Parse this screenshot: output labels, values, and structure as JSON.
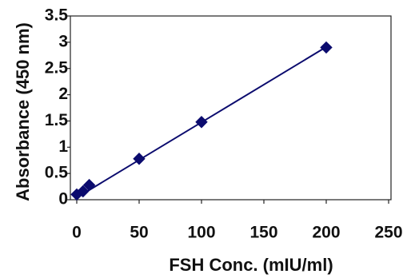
{
  "chart_data": {
    "type": "scatter",
    "title": "",
    "xlabel": "FSH Conc. (mIU/ml)",
    "ylabel": "Absorbance  (450  nm)",
    "xlim": [
      0,
      250
    ],
    "ylim": [
      0,
      3.5
    ],
    "x_ticks": [
      0,
      50,
      100,
      150,
      200,
      250
    ],
    "x_tick_labels": [
      "0",
      "50",
      "100",
      "150",
      "200",
      "250"
    ],
    "y_ticks": [
      0,
      0.5,
      1,
      1.5,
      2,
      2.5,
      3,
      3.5
    ],
    "y_tick_labels": [
      "0",
      "0.5",
      "1",
      "1.5",
      "2",
      "2.5",
      "3",
      "3.5"
    ],
    "grid": false,
    "legend": "none",
    "series": [
      {
        "x": [
          0,
          5,
          10,
          50,
          100,
          200
        ],
        "y": [
          0.1,
          0.16,
          0.28,
          0.78,
          1.48,
          2.9
        ],
        "marker": "diamond",
        "color": "#0b0b6e"
      }
    ],
    "trendline": {
      "x": [
        0,
        200
      ],
      "y": [
        0.04,
        2.91
      ],
      "color": "#0b0b6e"
    }
  }
}
